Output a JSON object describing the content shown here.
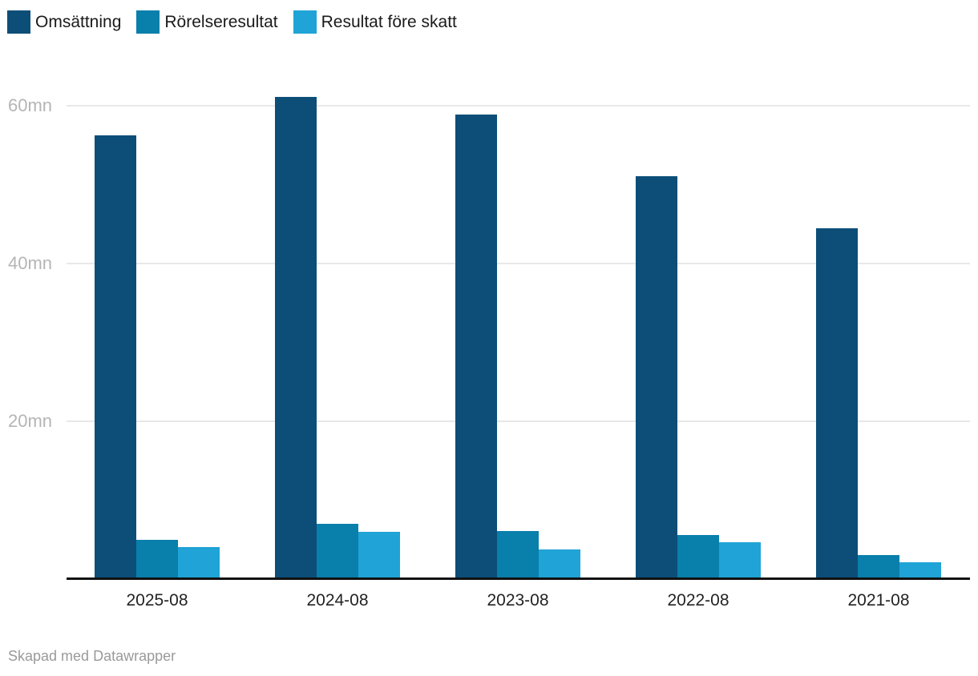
{
  "chart_data": {
    "type": "bar",
    "title": "",
    "categories": [
      "2025-08",
      "2024-08",
      "2023-08",
      "2022-08",
      "2021-08"
    ],
    "series": [
      {
        "name": "Omsättning",
        "color": "#0c4e78",
        "values": [
          56.1,
          61.0,
          58.8,
          51.0,
          44.4
        ]
      },
      {
        "name": "Rörelseresultat",
        "color": "#097fab",
        "values": [
          4.9,
          6.9,
          6.0,
          5.5,
          2.9
        ]
      },
      {
        "name": "Resultat före skatt",
        "color": "#20a3d6",
        "values": [
          4.0,
          5.9,
          3.7,
          4.6,
          2.0
        ]
      }
    ],
    "unit": "mn",
    "y_ticks": [
      {
        "value": 20,
        "label": "20mn"
      },
      {
        "value": 40,
        "label": "40mn"
      },
      {
        "value": 60,
        "label": "60mn"
      }
    ],
    "ylim": [
      0,
      64
    ],
    "grid": "horizontal",
    "legend_position": "top-left",
    "axis_color": "#111111",
    "gridline_color": "#e8e8e8",
    "tick_label_color": "#b5b5b5"
  },
  "footer": {
    "credit": "Skapad med Datawrapper"
  }
}
